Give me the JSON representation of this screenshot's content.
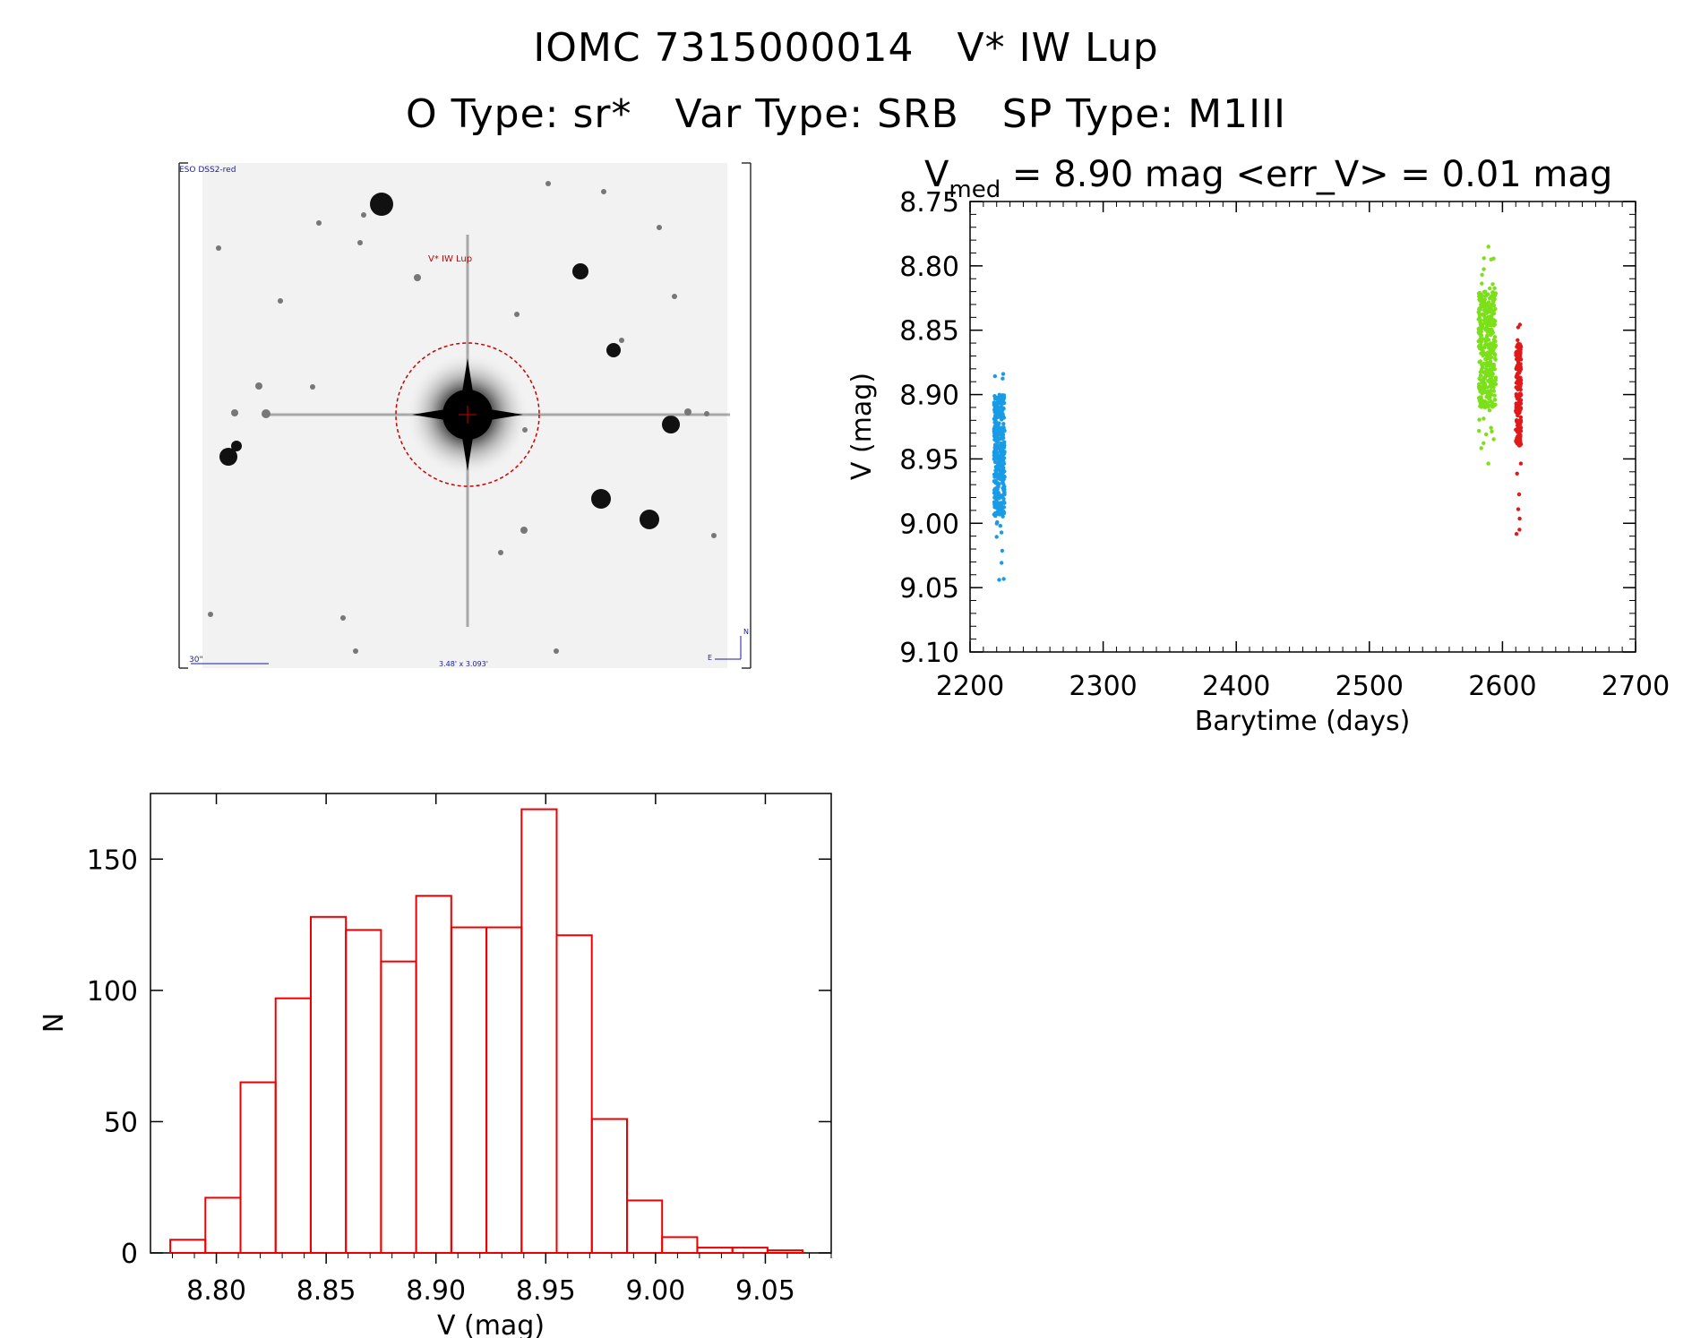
{
  "header": {
    "star_id": "IOMC 7315000014",
    "star_name": "V* IW Lup",
    "otype": "O Type: sr*",
    "vartype": "Var Type: SRB",
    "sptype": "SP Type: M1III"
  },
  "image_panel": {
    "survey_label": "ESO DSS2-red",
    "target_label": "V* IW Lup",
    "scale_label": "30\"",
    "fov_label": "3.48' x 3.093'",
    "north_label": "N",
    "east_label": "E",
    "colors": {
      "star_mark": "#cc0000",
      "annotation": "#1a1aa0"
    }
  },
  "chart_data": [
    {
      "type": "scatter",
      "title_main": "V",
      "title_sub": "med",
      "title_rest": " = 8.90 mag <err_V> = 0.01 mag",
      "xlabel": "Barytime (days)",
      "ylabel": "V (mag)",
      "xlim": [
        2200,
        2700
      ],
      "ylim": [
        9.1,
        8.75
      ],
      "xticks": [
        "2200",
        "2300",
        "2400",
        "2500",
        "2600",
        "2700"
      ],
      "yticks": [
        "8.75",
        "8.80",
        "8.85",
        "8.90",
        "8.95",
        "9.00",
        "9.05",
        "9.10"
      ],
      "series": [
        {
          "color": "#1a9be6",
          "x_range": [
            2218,
            2226
          ],
          "core": [
            8.9,
            8.995
          ],
          "full": [
            8.87,
            9.05
          ]
        },
        {
          "color": "#7be01a",
          "x_range": [
            2582,
            2595
          ],
          "core": [
            8.82,
            8.91
          ],
          "full": [
            8.78,
            8.97
          ]
        },
        {
          "color": "#e01a1a",
          "x_range": [
            2610,
            2614
          ],
          "core": [
            8.86,
            8.94
          ],
          "full": [
            8.845,
            9.01
          ]
        }
      ]
    },
    {
      "type": "bar",
      "xlabel": "V (mag)",
      "ylabel": "N",
      "xlim": [
        8.77,
        9.08
      ],
      "ylim": [
        0,
        175
      ],
      "bin_edges": [
        8.779,
        8.795,
        8.811,
        8.827,
        8.843,
        8.859,
        8.875,
        8.891,
        8.907,
        8.923,
        8.939,
        8.955,
        8.971,
        8.987,
        9.003,
        9.019,
        9.035,
        9.051,
        9.067
      ],
      "counts": [
        5,
        21,
        65,
        97,
        128,
        123,
        111,
        136,
        124,
        124,
        169,
        121,
        51,
        20,
        6,
        2,
        2,
        1
      ],
      "xticks": [
        "8.80",
        "8.85",
        "8.90",
        "8.95",
        "9.00",
        "9.05"
      ],
      "yticks": [
        "0",
        "50",
        "100",
        "150"
      ],
      "color": "#ee0000"
    }
  ]
}
